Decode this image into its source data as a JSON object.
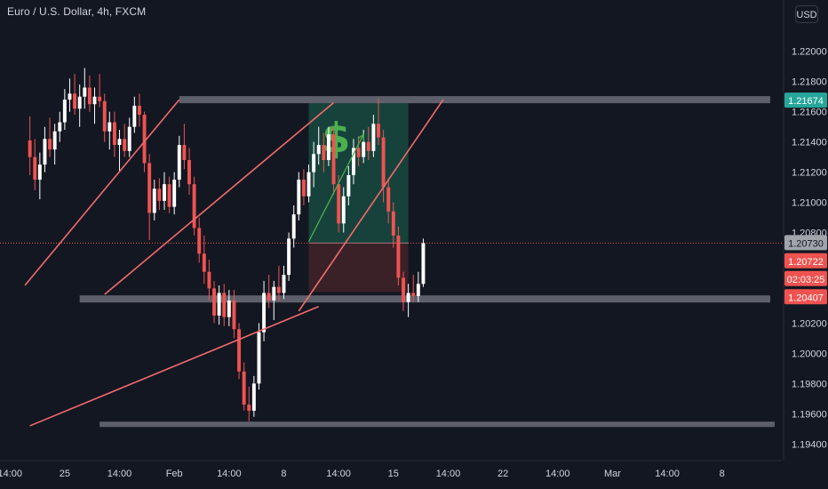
{
  "title": "Euro / U.S. Dollar, 4h, FXCM",
  "currency_button": "USD",
  "colors": {
    "background": "#131722",
    "bull": "#ffffff",
    "bear": "#ef5350",
    "channel": "#f26b6b",
    "zone_line": "#5d606b",
    "target_fill": "#17423c",
    "stop_fill": "#3a2128",
    "dollar_sign": "#4caf50",
    "arrow": "#4caf50",
    "text": "#d1d4dc",
    "price_tag_teal": "#26a69a",
    "price_tag_red": "#ef5350",
    "price_tag_gray": "#a1a4ab"
  },
  "price_tags": [
    {
      "label": "1.21674",
      "color": "#26a69a",
      "text_color": "#ffffff"
    },
    {
      "label": "1.20730",
      "color": "#a1a4ab",
      "text_color": "#131722"
    },
    {
      "label": "1.20722",
      "color": "#ef5350",
      "text_color": "#ffffff"
    },
    {
      "label": "02:03:25",
      "color": "#ef5350",
      "text_color": "#ffffff"
    },
    {
      "label": "1.20407",
      "color": "#ef5350",
      "text_color": "#ffffff"
    }
  ],
  "dollar_symbol": "$",
  "chart_data": {
    "type": "candlestick",
    "title": "Euro / U.S. Dollar, 4h, FXCM",
    "y_axis": {
      "ticks": [
        1.22,
        1.218,
        1.216,
        1.214,
        1.212,
        1.21,
        1.208,
        1.206,
        1.204,
        1.202,
        1.2,
        1.198,
        1.196,
        1.194
      ],
      "tick_labels": [
        "1.22000",
        "1.21800",
        "1.21600",
        "1.21400",
        "1.21200",
        "1.21000",
        "1.20800",
        "1.20600",
        "1.20400",
        "1.20200",
        "1.20000",
        "1.19800",
        "1.19600",
        "1.19400"
      ],
      "range": [
        1.1929,
        1.2234
      ],
      "scale": "linear"
    },
    "x_axis": {
      "tick_labels": [
        "14:00",
        "25",
        "14:00",
        "Feb",
        "14:00",
        "8",
        "14:00",
        "15",
        "14:00",
        "22",
        "14:00",
        "Mar",
        "14:00",
        "8"
      ],
      "range_bars": [
        -6,
        151
      ]
    },
    "grid": false,
    "current_price": 1.2073,
    "drawings": {
      "resistance_zone": 1.2168,
      "support_zone": 1.2036,
      "lower_zone": 1.1953,
      "long_position": {
        "entry": 1.2073,
        "target": 1.21674,
        "stop": 1.20407
      },
      "channel_upper": [
        [
          -1,
          1.2045
        ],
        [
          30,
          1.2168
        ]
      ],
      "channel_middle": [
        [
          15,
          1.2039
        ],
        [
          61,
          1.2166
        ]
      ],
      "channel_lower": [
        [
          0,
          1.1952
        ],
        [
          58,
          1.2031
        ]
      ],
      "recent_channel_lower": [
        [
          54,
          1.2028
        ],
        [
          83,
          1.2168
        ]
      ],
      "projection_arrow": [
        [
          56,
          1.2074
        ],
        [
          67,
          1.2145
        ]
      ]
    },
    "ohlc": [
      [
        1.2141,
        1.2157,
        1.2118,
        1.213
      ],
      [
        1.213,
        1.2142,
        1.2108,
        1.2115
      ],
      [
        1.2115,
        1.2133,
        1.2102,
        1.2125
      ],
      [
        1.2125,
        1.215,
        1.212,
        1.2142
      ],
      [
        1.2142,
        1.2156,
        1.213,
        1.2135
      ],
      [
        1.2135,
        1.2152,
        1.2125,
        1.2147
      ],
      [
        1.2147,
        1.216,
        1.214,
        1.2153
      ],
      [
        1.2153,
        1.2175,
        1.2148,
        1.2168
      ],
      [
        1.2168,
        1.2182,
        1.216,
        1.2172
      ],
      [
        1.2172,
        1.2185,
        1.2158,
        1.2162
      ],
      [
        1.2162,
        1.2178,
        1.215,
        1.217
      ],
      [
        1.217,
        1.2189,
        1.2162,
        1.2176
      ],
      [
        1.2176,
        1.2184,
        1.216,
        1.2165
      ],
      [
        1.2165,
        1.2176,
        1.2152,
        1.217
      ],
      [
        1.217,
        1.2185,
        1.2163,
        1.2167
      ],
      [
        1.2167,
        1.2172,
        1.214,
        1.2147
      ],
      [
        1.2147,
        1.216,
        1.2135,
        1.2153
      ],
      [
        1.2153,
        1.216,
        1.213,
        1.2138
      ],
      [
        1.2138,
        1.2148,
        1.212,
        1.2142
      ],
      [
        1.2142,
        1.2152,
        1.213,
        1.2134
      ],
      [
        1.2134,
        1.2156,
        1.213,
        1.215
      ],
      [
        1.215,
        1.217,
        1.2146,
        1.2164
      ],
      [
        1.2164,
        1.2172,
        1.215,
        1.2158
      ],
      [
        1.2158,
        1.216,
        1.212,
        1.2126
      ],
      [
        1.2126,
        1.2132,
        1.2075,
        1.2093
      ],
      [
        1.2093,
        1.2115,
        1.2088,
        1.2109
      ],
      [
        1.2109,
        1.2116,
        1.2095,
        1.2101
      ],
      [
        1.2101,
        1.212,
        1.2095,
        1.2112
      ],
      [
        1.2112,
        1.2117,
        1.2093,
        1.2097
      ],
      [
        1.2097,
        1.212,
        1.2092,
        1.2115
      ],
      [
        1.2115,
        1.2144,
        1.211,
        1.2138
      ],
      [
        1.2138,
        1.2152,
        1.2122,
        1.2128
      ],
      [
        1.2128,
        1.2136,
        1.2105,
        1.2112
      ],
      [
        1.2112,
        1.2117,
        1.2078,
        1.2083
      ],
      [
        1.2083,
        1.209,
        1.206,
        1.2066
      ],
      [
        1.2066,
        1.2078,
        1.2046,
        1.2054
      ],
      [
        1.2054,
        1.2062,
        1.2035,
        1.2043
      ],
      [
        1.2043,
        1.2048,
        1.202,
        1.2025
      ],
      [
        1.2025,
        1.2045,
        1.2019,
        1.204
      ],
      [
        1.204,
        1.2046,
        1.2018,
        1.2024
      ],
      [
        1.2024,
        1.2042,
        1.2018,
        1.2035
      ],
      [
        1.2035,
        1.2042,
        1.201,
        1.2016
      ],
      [
        1.2016,
        1.202,
        1.1983,
        1.1988
      ],
      [
        1.1988,
        1.1994,
        1.1962,
        1.1966
      ],
      [
        1.1966,
        1.1978,
        1.1955,
        1.1962
      ],
      [
        1.1962,
        1.1985,
        1.1958,
        1.198
      ],
      [
        1.198,
        1.202,
        1.1976,
        1.2014
      ],
      [
        1.2014,
        1.2048,
        1.2008,
        1.204
      ],
      [
        1.204,
        1.2052,
        1.203,
        1.2035
      ],
      [
        1.2035,
        1.2048,
        1.2022,
        1.2044
      ],
      [
        1.2044,
        1.2058,
        1.2035,
        1.204
      ],
      [
        1.204,
        1.2058,
        1.2036,
        1.2052
      ],
      [
        1.2052,
        1.208,
        1.2048,
        1.2076
      ],
      [
        1.2076,
        1.2098,
        1.207,
        1.2092
      ],
      [
        1.2092,
        1.212,
        1.2088,
        1.2115
      ],
      [
        1.2115,
        1.2122,
        1.2098,
        1.2104
      ],
      [
        1.2104,
        1.2125,
        1.21,
        1.212
      ],
      [
        1.212,
        1.214,
        1.211,
        1.2132
      ],
      [
        1.2132,
        1.215,
        1.2125,
        1.2138
      ],
      [
        1.2138,
        1.2146,
        1.212,
        1.2128
      ],
      [
        1.2128,
        1.215,
        1.2124,
        1.2145
      ],
      [
        1.2145,
        1.215,
        1.2105,
        1.2112
      ],
      [
        1.2112,
        1.2118,
        1.208,
        1.2086
      ],
      [
        1.2086,
        1.211,
        1.208,
        1.2104
      ],
      [
        1.2104,
        1.2124,
        1.2098,
        1.2118
      ],
      [
        1.2118,
        1.2142,
        1.2112,
        1.2136
      ],
      [
        1.2136,
        1.2144,
        1.2124,
        1.213
      ],
      [
        1.213,
        1.2148,
        1.2126,
        1.214
      ],
      [
        1.214,
        1.215,
        1.2128,
        1.2134
      ],
      [
        1.2134,
        1.2158,
        1.213,
        1.2152
      ],
      [
        1.2152,
        1.2169,
        1.2138,
        1.2143
      ],
      [
        1.2143,
        1.2148,
        1.21,
        1.211
      ],
      [
        1.211,
        1.2116,
        1.2086,
        1.2094
      ],
      [
        1.2094,
        1.21,
        1.207,
        1.2078
      ],
      [
        1.2078,
        1.2084,
        1.2045,
        1.205
      ],
      [
        1.205,
        1.2054,
        1.2028,
        1.2034
      ],
      [
        1.2034,
        1.2046,
        1.2024,
        1.204
      ],
      [
        1.204,
        1.2052,
        1.2034,
        1.2038
      ],
      [
        1.2038,
        1.2054,
        1.2034,
        1.2046
      ],
      [
        1.2046,
        1.2076,
        1.2044,
        1.2073
      ]
    ]
  }
}
